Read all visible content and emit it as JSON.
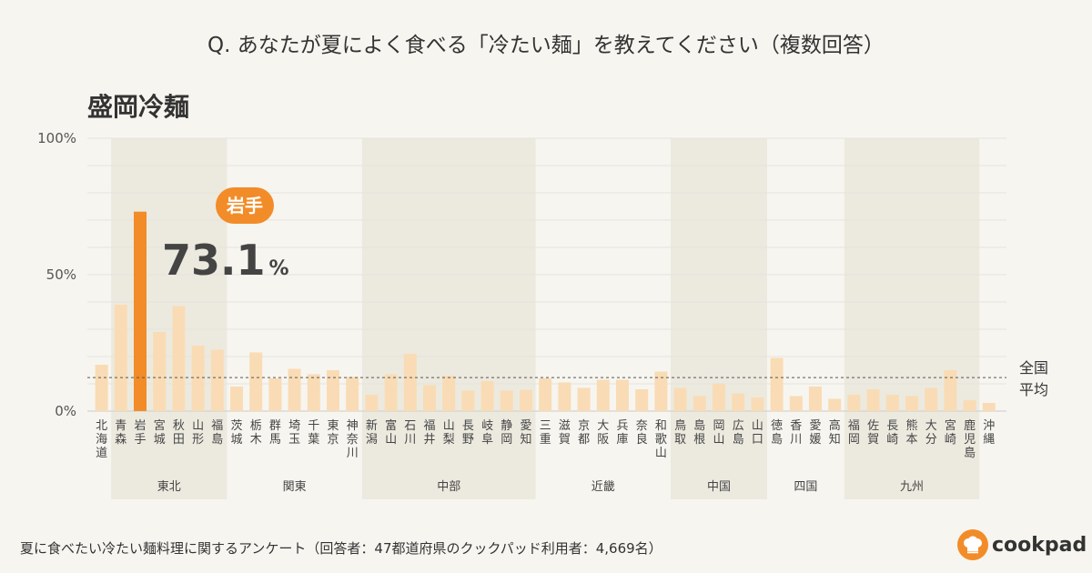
{
  "question": "Q. あなたが夏によく食べる「冷たい麺」を教えてください（複数回答）",
  "chart_title": "盛岡冷麺",
  "footnote": "夏に食べたい冷たい麺料理に関するアンケート（回答者：47都道府県のクックパッド利用者：4,669名）",
  "brand": "cookpad",
  "colors": {
    "bar": "#f9dcb5",
    "highlight": "#f28c28",
    "band": "#eceadf",
    "background": "#f7f5f0"
  },
  "chart_data": {
    "type": "bar",
    "title": "盛岡冷麺",
    "ylim": [
      0,
      100
    ],
    "y_ticks": [
      "0%",
      "50%",
      "100%"
    ],
    "grid": true,
    "categories": [
      "北海道",
      "青森",
      "岩手",
      "宮城",
      "秋田",
      "山形",
      "福島",
      "茨城",
      "栃木",
      "群馬",
      "埼玉",
      "千葉",
      "東京",
      "神奈川",
      "新潟",
      "富山",
      "石川",
      "福井",
      "山梨",
      "長野",
      "岐阜",
      "静岡",
      "愛知",
      "三重",
      "滋賀",
      "京都",
      "大阪",
      "兵庫",
      "奈良",
      "和歌山",
      "鳥取",
      "島根",
      "岡山",
      "広島",
      "山口",
      "徳島",
      "香川",
      "愛媛",
      "高知",
      "福岡",
      "佐賀",
      "長崎",
      "熊本",
      "大分",
      "宮崎",
      "鹿児島",
      "沖縄"
    ],
    "values": [
      17,
      39,
      73.1,
      29,
      38.5,
      24,
      22.5,
      9,
      21.5,
      12,
      15.5,
      13.5,
      15,
      12.5,
      6,
      13.5,
      21,
      9.5,
      13,
      7.5,
      11,
      7.5,
      7.8,
      12,
      10.5,
      8.5,
      11.5,
      11.5,
      8,
      14.5,
      8.5,
      5.5,
      10,
      6.5,
      5,
      19.5,
      5.5,
      9,
      4.5,
      6,
      8,
      6,
      5.5,
      8.5,
      15,
      4,
      3
    ],
    "highlight": {
      "label": "岩手",
      "value": "73.1",
      "unit": "%"
    },
    "average": {
      "value": 12.3,
      "label": "全国平均"
    },
    "regions": [
      {
        "name": "東北",
        "start": 1,
        "end": 6,
        "shaded": true
      },
      {
        "name": "関東",
        "start": 7,
        "end": 13,
        "shaded": false
      },
      {
        "name": "中部",
        "start": 14,
        "end": 22,
        "shaded": true
      },
      {
        "name": "近畿",
        "start": 23,
        "end": 29,
        "shaded": false
      },
      {
        "name": "中国",
        "start": 30,
        "end": 34,
        "shaded": true
      },
      {
        "name": "四国",
        "start": 35,
        "end": 38,
        "shaded": false
      },
      {
        "name": "九州",
        "start": 39,
        "end": 45,
        "shaded": true
      }
    ]
  }
}
